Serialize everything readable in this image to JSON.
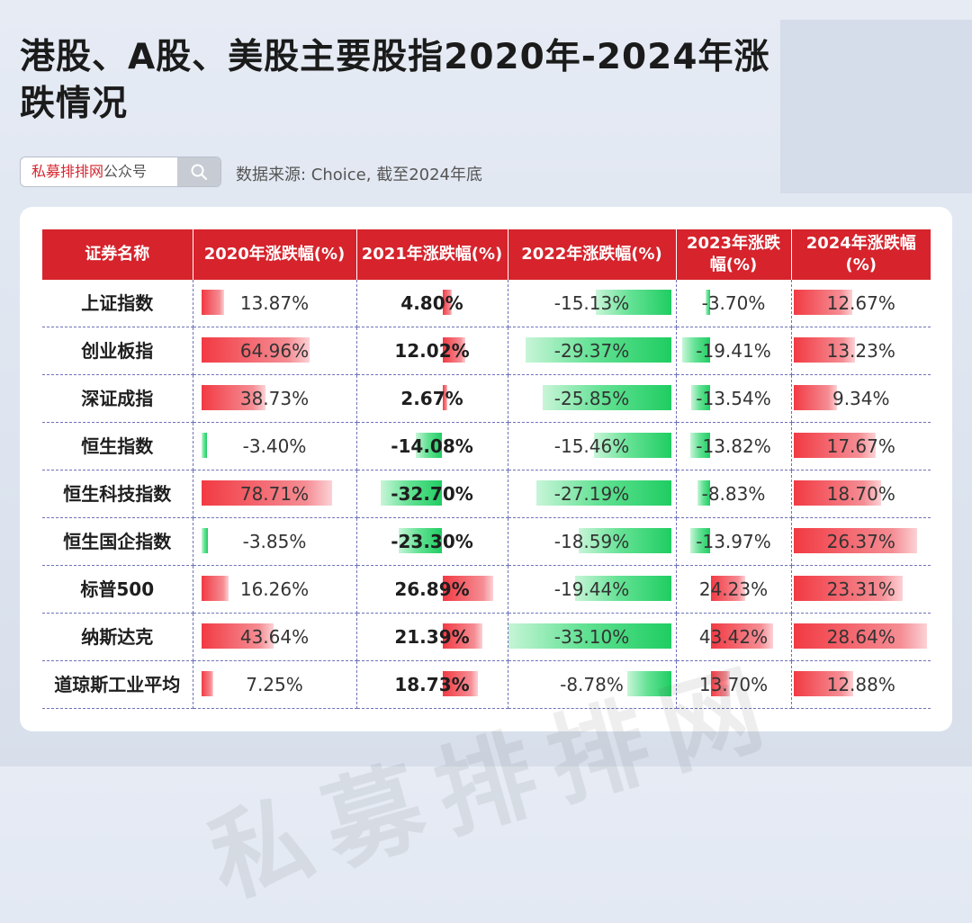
{
  "title": "港股、A股、美股主要股指2020年-2024年涨跌情况",
  "search": {
    "brand": "私募排排网",
    "suffix": "公众号",
    "icon": "search-icon"
  },
  "source": "数据来源: Choice, 截至2024年底",
  "watermark": "私募排排网",
  "colors": {
    "header": "#d6232c",
    "positive": "#f23a43",
    "negative": "#1fcd62"
  },
  "table": {
    "headers": [
      "证券名称",
      "2020年涨跌幅(%)",
      "2021年涨跌幅(%)",
      "2022年涨跌幅(%)",
      "2023年涨跌幅(%)",
      "2024年涨跌幅(%)"
    ],
    "rows": [
      {
        "name": "上证指数",
        "values": [
          "13.87%",
          "4.80%",
          "-15.13%",
          "-3.70%",
          "12.67%"
        ]
      },
      {
        "name": "创业板指",
        "values": [
          "64.96%",
          "12.02%",
          "-29.37%",
          "-19.41%",
          "13.23%"
        ]
      },
      {
        "name": "深证成指",
        "values": [
          "38.73%",
          "2.67%",
          "-25.85%",
          "-13.54%",
          "9.34%"
        ]
      },
      {
        "name": "恒生指数",
        "values": [
          "-3.40%",
          "-14.08%",
          "-15.46%",
          "-13.82%",
          "17.67%"
        ]
      },
      {
        "name": "恒生科技指数",
        "values": [
          "78.71%",
          "-32.70%",
          "-27.19%",
          "-8.83%",
          "18.70%"
        ]
      },
      {
        "name": "恒生国企指数",
        "values": [
          "-3.85%",
          "-23.30%",
          "-18.59%",
          "-13.97%",
          "26.37%"
        ]
      },
      {
        "name": "标普500",
        "values": [
          "16.26%",
          "26.89%",
          "-19.44%",
          "24.23%",
          "23.31%"
        ]
      },
      {
        "name": "纳斯达克",
        "values": [
          "43.64%",
          "21.39%",
          "-33.10%",
          "43.42%",
          "28.64%"
        ]
      },
      {
        "name": "道琼斯工业平均",
        "values": [
          "7.25%",
          "18.73%",
          "-8.78%",
          "13.70%",
          "12.88%"
        ]
      }
    ]
  }
}
